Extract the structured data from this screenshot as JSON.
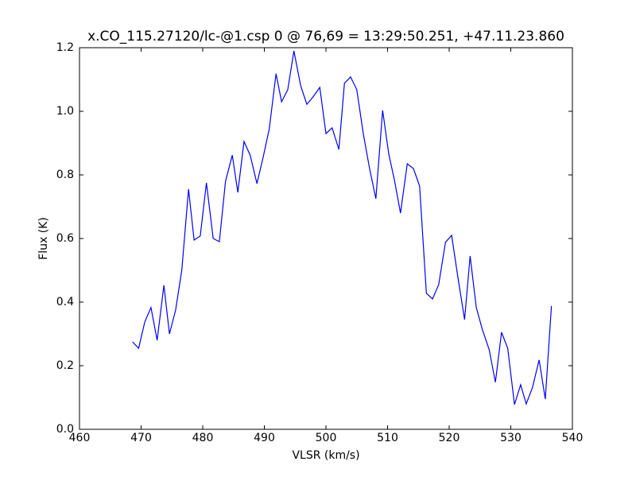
{
  "chart_data": {
    "type": "line",
    "title": "x.CO_115.27120/lc-@1.csp 0 @ 76,69 = 13:29:50.251, +47.11.23.860",
    "x_label": "VLSR (km/s)",
    "y_label": "Flux (K)",
    "xlim": [
      460,
      540
    ],
    "ylim": [
      0,
      1.2
    ],
    "xticks": [
      460,
      470,
      480,
      490,
      500,
      510,
      520,
      530,
      540
    ],
    "yticks": [
      {
        "value": 0,
        "label": "0.0"
      },
      {
        "value": 0.2,
        "label": "0.2"
      },
      {
        "value": 0.4,
        "label": "0.4"
      },
      {
        "value": 0.6,
        "label": "0.6"
      },
      {
        "value": 0.8,
        "label": "0.8"
      },
      {
        "value": 1,
        "label": "1.0"
      },
      {
        "value": 1.2,
        "label": "1.2"
      }
    ],
    "grid": false,
    "color": "#0000ff",
    "x": [
      468.6,
      469.6,
      470.6,
      471.6,
      472.6,
      473.7,
      474.6,
      475.6,
      476.6,
      477.7,
      478.6,
      479.6,
      480.6,
      481.7,
      482.7,
      483.7,
      484.8,
      485.7,
      486.7,
      487.7,
      488.8,
      489.8,
      490.8,
      491.9,
      492.8,
      493.8,
      494.8,
      495.9,
      496.9,
      497.9,
      499.0,
      500.0,
      501.0,
      502.1,
      503.0,
      504.0,
      505.0,
      506.1,
      507.1,
      508.1,
      509.2,
      510.2,
      511.1,
      512.1,
      513.2,
      514.2,
      515.2,
      516.3,
      517.3,
      518.3,
      519.4,
      520.4,
      521.4,
      522.5,
      523.4,
      524.4,
      525.4,
      526.5,
      527.5,
      528.5,
      529.5,
      530.6,
      531.6,
      532.5,
      533.5,
      534.6,
      535.6,
      536.6
    ],
    "values": [
      0.275,
      0.255,
      0.338,
      0.383,
      0.28,
      0.453,
      0.3,
      0.375,
      0.5,
      0.755,
      0.595,
      0.608,
      0.775,
      0.6,
      0.59,
      0.78,
      0.862,
      0.745,
      0.905,
      0.862,
      0.773,
      0.855,
      0.945,
      1.118,
      1.03,
      1.068,
      1.19,
      1.08,
      1.022,
      1.045,
      1.075,
      0.93,
      0.948,
      0.88,
      1.088,
      1.108,
      1.068,
      0.925,
      0.818,
      0.725,
      1.003,
      0.865,
      0.785,
      0.68,
      0.835,
      0.82,
      0.765,
      0.428,
      0.41,
      0.455,
      0.588,
      0.61,
      0.48,
      0.345,
      0.545,
      0.383,
      0.313,
      0.25,
      0.148,
      0.305,
      0.255,
      0.078,
      0.14,
      0.08,
      0.13,
      0.218,
      0.095,
      0.388
    ]
  }
}
